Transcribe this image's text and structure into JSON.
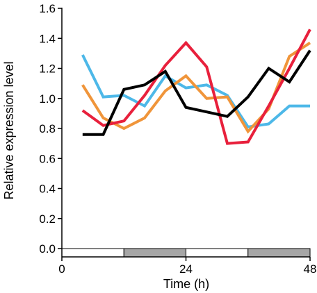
{
  "chart_data": {
    "type": "line",
    "title": "",
    "xlabel": "Time (h)",
    "ylabel": "Relative expression level",
    "xlim": [
      0,
      48
    ],
    "ylim": [
      0,
      1.6
    ],
    "xticks": [
      0,
      24,
      48
    ],
    "xtick_labels": [
      "0",
      "24",
      "48"
    ],
    "yticks": [
      0,
      0.2,
      0.4,
      0.6,
      0.8,
      1.0,
      1.2,
      1.4,
      1.6
    ],
    "ytick_labels": [
      "0.0",
      "0.2",
      "0.4",
      "0.6",
      "0.8",
      "1.0",
      "1.2",
      "1.4",
      "1.6"
    ],
    "grid": false,
    "light_dark_bar": [
      {
        "start": 0,
        "end": 12,
        "phase": "light",
        "color": "#ffffff"
      },
      {
        "start": 12,
        "end": 24,
        "phase": "dark",
        "color": "#a6a6a6"
      },
      {
        "start": 24,
        "end": 36,
        "phase": "light",
        "color": "#ffffff"
      },
      {
        "start": 36,
        "end": 48,
        "phase": "dark",
        "color": "#a6a6a6"
      }
    ],
    "series": [
      {
        "color": "#4db8e8",
        "x": [
          4,
          8,
          12,
          16,
          20,
          24,
          28,
          32,
          36,
          40,
          44,
          48
        ],
        "y": [
          1.29,
          1.01,
          1.02,
          0.95,
          1.15,
          1.07,
          1.09,
          1.02,
          0.81,
          0.83,
          0.95,
          0.95
        ]
      },
      {
        "color": "#f0953a",
        "x": [
          4,
          8,
          12,
          16,
          20,
          24,
          28,
          32,
          36,
          40,
          44,
          48
        ],
        "y": [
          1.09,
          0.87,
          0.8,
          0.87,
          1.05,
          1.15,
          1.0,
          1.01,
          0.78,
          0.93,
          1.28,
          1.37
        ]
      },
      {
        "color": "#e8203c",
        "x": [
          4,
          8,
          12,
          16,
          20,
          24,
          28,
          32,
          36,
          40,
          44,
          48
        ],
        "y": [
          0.92,
          0.82,
          0.85,
          1.02,
          1.22,
          1.37,
          1.21,
          0.7,
          0.71,
          0.95,
          1.2,
          1.46
        ]
      },
      {
        "color": "#000000",
        "x": [
          4,
          8,
          12,
          16,
          20,
          24,
          28,
          32,
          36,
          40,
          44,
          48
        ],
        "y": [
          0.76,
          0.76,
          1.06,
          1.09,
          1.18,
          0.94,
          0.91,
          0.88,
          1.01,
          1.2,
          1.11,
          1.32
        ]
      }
    ]
  }
}
